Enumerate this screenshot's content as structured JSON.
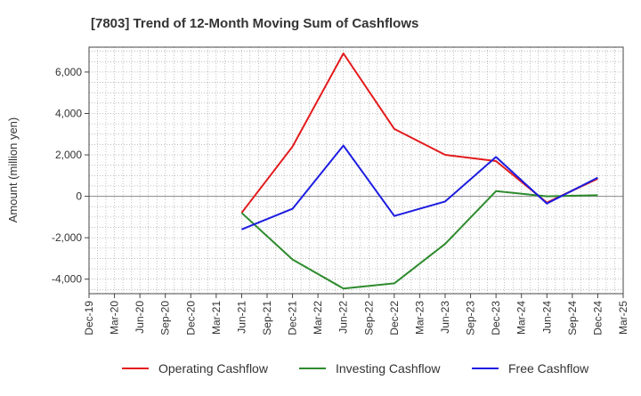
{
  "chart_data": {
    "type": "line",
    "title": "[7803]  Trend of 12-Month Moving Sum of Cashflows",
    "ylabel": "Amount (million yen)",
    "xlabel": "",
    "ylim": [
      -4700,
      7200
    ],
    "yticks": [
      -4000,
      -2000,
      0,
      2000,
      4000,
      6000
    ],
    "ytick_labels": [
      "-4,000",
      "-2,000",
      "0",
      "2,000",
      "4,000",
      "6,000"
    ],
    "xticks": [
      "Dec-19",
      "Mar-20",
      "Jun-20",
      "Sep-20",
      "Dec-20",
      "Mar-21",
      "Jun-21",
      "Sep-21",
      "Dec-21",
      "Mar-22",
      "Jun-22",
      "Sep-22",
      "Dec-22",
      "Mar-23",
      "Jun-23",
      "Sep-23",
      "Dec-23",
      "Mar-24",
      "Jun-24",
      "Sep-24",
      "Dec-24",
      "Mar-25"
    ],
    "grid": true,
    "legend_position": "bottom",
    "series": [
      {
        "name": "Operating Cashflow",
        "color": "#e31a1c",
        "points": [
          {
            "x": "Jun-21",
            "y": -800
          },
          {
            "x": "Dec-21",
            "y": 2400
          },
          {
            "x": "Jun-22",
            "y": 6900
          },
          {
            "x": "Dec-22",
            "y": 3250
          },
          {
            "x": "Jun-23",
            "y": 2000
          },
          {
            "x": "Dec-23",
            "y": 1700
          },
          {
            "x": "Jun-24",
            "y": -300
          },
          {
            "x": "Dec-24",
            "y": 850
          }
        ]
      },
      {
        "name": "Investing Cashflow",
        "color": "#2e8b2e",
        "points": [
          {
            "x": "Jun-21",
            "y": -800
          },
          {
            "x": "Dec-21",
            "y": -3050
          },
          {
            "x": "Jun-22",
            "y": -4450
          },
          {
            "x": "Dec-22",
            "y": -4200
          },
          {
            "x": "Jun-23",
            "y": -2300
          },
          {
            "x": "Dec-23",
            "y": 250
          },
          {
            "x": "Jun-24",
            "y": 0
          },
          {
            "x": "Dec-24",
            "y": 50
          }
        ]
      },
      {
        "name": "Free Cashflow",
        "color": "#1c1ce0",
        "points": [
          {
            "x": "Jun-21",
            "y": -1600
          },
          {
            "x": "Dec-21",
            "y": -600
          },
          {
            "x": "Jun-22",
            "y": 2450
          },
          {
            "x": "Dec-22",
            "y": -950
          },
          {
            "x": "Jun-23",
            "y": -250
          },
          {
            "x": "Dec-23",
            "y": 1900
          },
          {
            "x": "Jun-24",
            "y": -350
          },
          {
            "x": "Dec-24",
            "y": 900
          }
        ]
      }
    ]
  }
}
